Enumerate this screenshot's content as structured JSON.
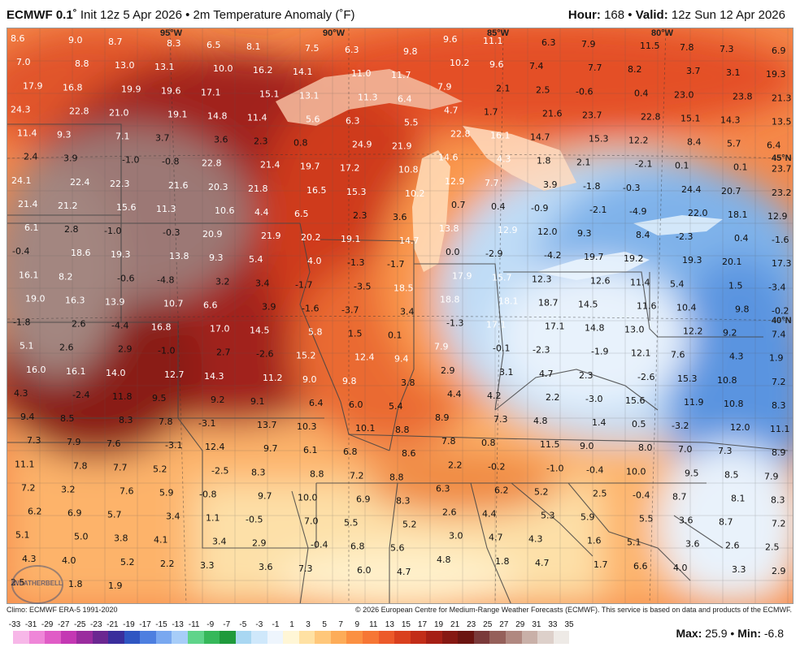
{
  "header": {
    "model": "ECMWF 0.1",
    "init": "Init 12z 5 Apr 2026",
    "field": "2m Temperature Anomaly (˚F)",
    "hour_label": "Hour:",
    "hour": "168",
    "valid_label": "Valid:",
    "valid": "12z Sun 12 Apr 2026"
  },
  "map_coords": {
    "lon95": "95°W",
    "lon90": "90°W",
    "lon85": "85°W",
    "lon80": "80°W",
    "lat45": "45°N",
    "lat40": "40°N"
  },
  "anomaly_labels": [
    "8.6",
    "9.0",
    "8.7",
    "8.3",
    "6.5",
    "8.1",
    "7.5",
    "6.3",
    "9.8",
    "9.6",
    "11.1",
    "6.3",
    "7.9",
    "11.5",
    "7.8",
    "7.3",
    "6.9",
    "7.0",
    "8.8",
    "13.0",
    "13.1",
    "10.0",
    "16.2",
    "14.1",
    "11.0",
    "11.7",
    "10.2",
    "9.6",
    "7.4",
    "7.7",
    "8.2",
    "3.7",
    "3.1",
    "19.3",
    "17.9",
    "16.8",
    "19.9",
    "19.6",
    "17.1",
    "15.1",
    "13.1",
    "11.3",
    "6.4",
    "7.9",
    "2.1",
    "2.5",
    "-0.6",
    "0.4",
    "23.0",
    "23.8",
    "21.3",
    "24.3",
    "22.8",
    "21.0",
    "19.1",
    "14.8",
    "11.4",
    "5.6",
    "6.3",
    "5.5",
    "4.7",
    "1.7",
    "21.6",
    "23.7",
    "22.8",
    "15.1",
    "14.3",
    "13.5",
    "11.4",
    "9.3",
    "7.1",
    "3.7",
    "3.6",
    "2.3",
    "0.8",
    "24.9",
    "21.9",
    "22.8",
    "16.1",
    "14.7",
    "15.3",
    "12.2",
    "8.4",
    "5.7",
    "6.4",
    "2.4",
    "3.9",
    "-1.0",
    "-0.8",
    "22.8",
    "21.4",
    "19.7",
    "17.2",
    "10.8",
    "14.6",
    "4.3",
    "1.8",
    "2.1",
    "-2.1",
    "0.1",
    "0.1",
    "23.7",
    "24.1",
    "22.4",
    "22.3",
    "21.6",
    "20.3",
    "21.8",
    "16.5",
    "15.3",
    "10.2",
    "12.9",
    "7.7",
    "3.9",
    "-1.8",
    "-0.3",
    "24.4",
    "20.7",
    "23.2",
    "21.4",
    "21.2",
    "15.6",
    "11.3",
    "10.6",
    "4.4",
    "6.5",
    "2.3",
    "3.6",
    "0.7",
    "0.4",
    "-0.9",
    "-2.1",
    "-4.9",
    "22.0",
    "18.1",
    "12.9",
    "6.1",
    "2.8",
    "-1.0",
    "-0.3",
    "20.9",
    "21.9",
    "20.2",
    "19.1",
    "14.7",
    "13.8",
    "12.9",
    "12.0",
    "9.3",
    "8.4",
    "-2.3",
    "0.4",
    "-1.6",
    "-0.4",
    "18.6",
    "19.3",
    "13.8",
    "9.3",
    "5.4",
    "4.0",
    "-1.3",
    "-1.7",
    "0.0",
    "-2.9",
    "-4.2",
    "19.7",
    "19.2",
    "19.3",
    "20.1",
    "17.3",
    "16.1",
    "8.2",
    "-0.6",
    "-4.8",
    "3.2",
    "3.4",
    "-1.7",
    "-3.5",
    "18.5",
    "17.9",
    "15.7",
    "12.3",
    "12.6",
    "11.4",
    "5.4",
    "1.5",
    "-3.4",
    "19.0",
    "16.3",
    "13.9",
    "10.7",
    "6.6",
    "3.9",
    "-1.6",
    "-3.7",
    "3.4",
    "18.8",
    "18.1",
    "18.7",
    "14.5",
    "11.6",
    "10.4",
    "9.8",
    "-0.2",
    "-1.8",
    "2.6",
    "-4.4",
    "16.8",
    "17.0",
    "14.5",
    "5.8",
    "1.5",
    "0.1",
    "-1.3",
    "17.1",
    "17.1",
    "14.8",
    "13.0",
    "12.2",
    "9.2",
    "7.4",
    "5.1",
    "2.6",
    "2.9",
    "-1.0",
    "2.7",
    "-2.6",
    "15.2",
    "12.4",
    "9.4",
    "7.9",
    "-0.1",
    "-2.3",
    "-1.9",
    "12.1",
    "7.6",
    "4.3",
    "1.9",
    "16.0",
    "16.1",
    "14.0",
    "12.7",
    "14.3",
    "11.2",
    "9.0",
    "9.8",
    "3.8",
    "2.9",
    "3.1",
    "4.7",
    "2.3",
    "-2.6",
    "15.3",
    "10.8",
    "7.2",
    "4.3",
    "-2.4",
    "11.8",
    "9.5",
    "9.2",
    "9.1",
    "6.4",
    "6.0",
    "5.4",
    "4.4",
    "4.2",
    "2.2",
    "-3.0",
    "15.6",
    "11.9",
    "10.8",
    "8.3",
    "9.4",
    "8.5",
    "8.3",
    "7.8",
    "-3.1",
    "13.7",
    "10.3",
    "10.1",
    "8.8",
    "8.9",
    "7.3",
    "4.8",
    "1.4",
    "0.5",
    "-3.2",
    "12.0",
    "11.1",
    "7.3",
    "7.9",
    "7.6",
    "-3.1",
    "12.4",
    "9.7",
    "6.1",
    "6.8",
    "8.6",
    "7.8",
    "0.8",
    "11.5",
    "9.0",
    "8.0",
    "7.0",
    "7.3",
    "8.9",
    "11.1",
    "7.8",
    "7.7",
    "5.2",
    "-2.5",
    "8.3",
    "8.8",
    "7.2",
    "8.8",
    "2.2",
    "-0.2",
    "-1.0",
    "-0.4",
    "10.0",
    "9.5",
    "8.5",
    "7.9",
    "7.2",
    "3.2",
    "7.6",
    "5.9",
    "-0.8",
    "9.7",
    "10.0",
    "6.9",
    "8.3",
    "6.3",
    "6.2",
    "5.2",
    "2.5",
    "-0.4",
    "8.7",
    "8.1",
    "8.3",
    "6.2",
    "6.9",
    "5.7",
    "3.4",
    "1.1",
    "-0.5",
    "7.0",
    "5.5",
    "5.2",
    "2.6",
    "4.4",
    "5.3",
    "5.9",
    "5.5",
    "3.6",
    "8.7",
    "7.2",
    "5.1",
    "5.0",
    "3.8",
    "4.1",
    "3.4",
    "2.9",
    "-0.4",
    "6.8",
    "5.6",
    "3.0",
    "4.7",
    "4.3",
    "1.6",
    "5.1",
    "3.6",
    "2.6",
    "2.5",
    "4.3",
    "4.0",
    "5.2",
    "2.2",
    "3.3",
    "3.6",
    "7.3",
    "6.0",
    "4.7",
    "4.8",
    "1.8",
    "4.7",
    "1.7",
    "6.6",
    "4.0",
    "3.3",
    "2.9",
    "2.5",
    "1.8",
    "1.9"
  ],
  "footer": {
    "climo": "Climo: ECMWF ERA-5 1991-2020",
    "copyright": "© 2026 European Centre for Medium-Range Weather Forecasts (ECMWF). This service is based on data and products of the ECMWF.",
    "logo_text": "WEATHERBELL",
    "max_label": "Max:",
    "max": "25.9",
    "min_label": "Min:",
    "min": "-6.8"
  },
  "colorbar": {
    "ticks": [
      "-33",
      "-31",
      "-29",
      "-27",
      "-25",
      "-23",
      "-21",
      "-19",
      "-17",
      "-15",
      "-13",
      "-11",
      "-9",
      "-7",
      "-5",
      "-3",
      "-1",
      "1",
      "3",
      "5",
      "7",
      "9",
      "11",
      "13",
      "15",
      "17",
      "19",
      "21",
      "23",
      "25",
      "27",
      "29",
      "31",
      "33",
      "35"
    ],
    "colors": [
      "#f7b7e8",
      "#ef86d8",
      "#e05cc6",
      "#c438b3",
      "#9a2c9e",
      "#6b2791",
      "#3a2e9c",
      "#2f56c2",
      "#4d7fe0",
      "#79a8f0",
      "#a7cdf8",
      "#5fd48a",
      "#36b85a",
      "#1f9a3c",
      "#a9d7f2",
      "#cfe8fb",
      "#eef5fd",
      "#fff6d6",
      "#ffe1a3",
      "#ffc77a",
      "#fdac58",
      "#fb9042",
      "#f67635",
      "#ec5a2a",
      "#d9401e",
      "#c22d18",
      "#a51f15",
      "#861812",
      "#6b1410",
      "#7a3a3a",
      "#95605a",
      "#b08880",
      "#c9b0a8",
      "#ddd0ca",
      "#eeeae6"
    ]
  }
}
